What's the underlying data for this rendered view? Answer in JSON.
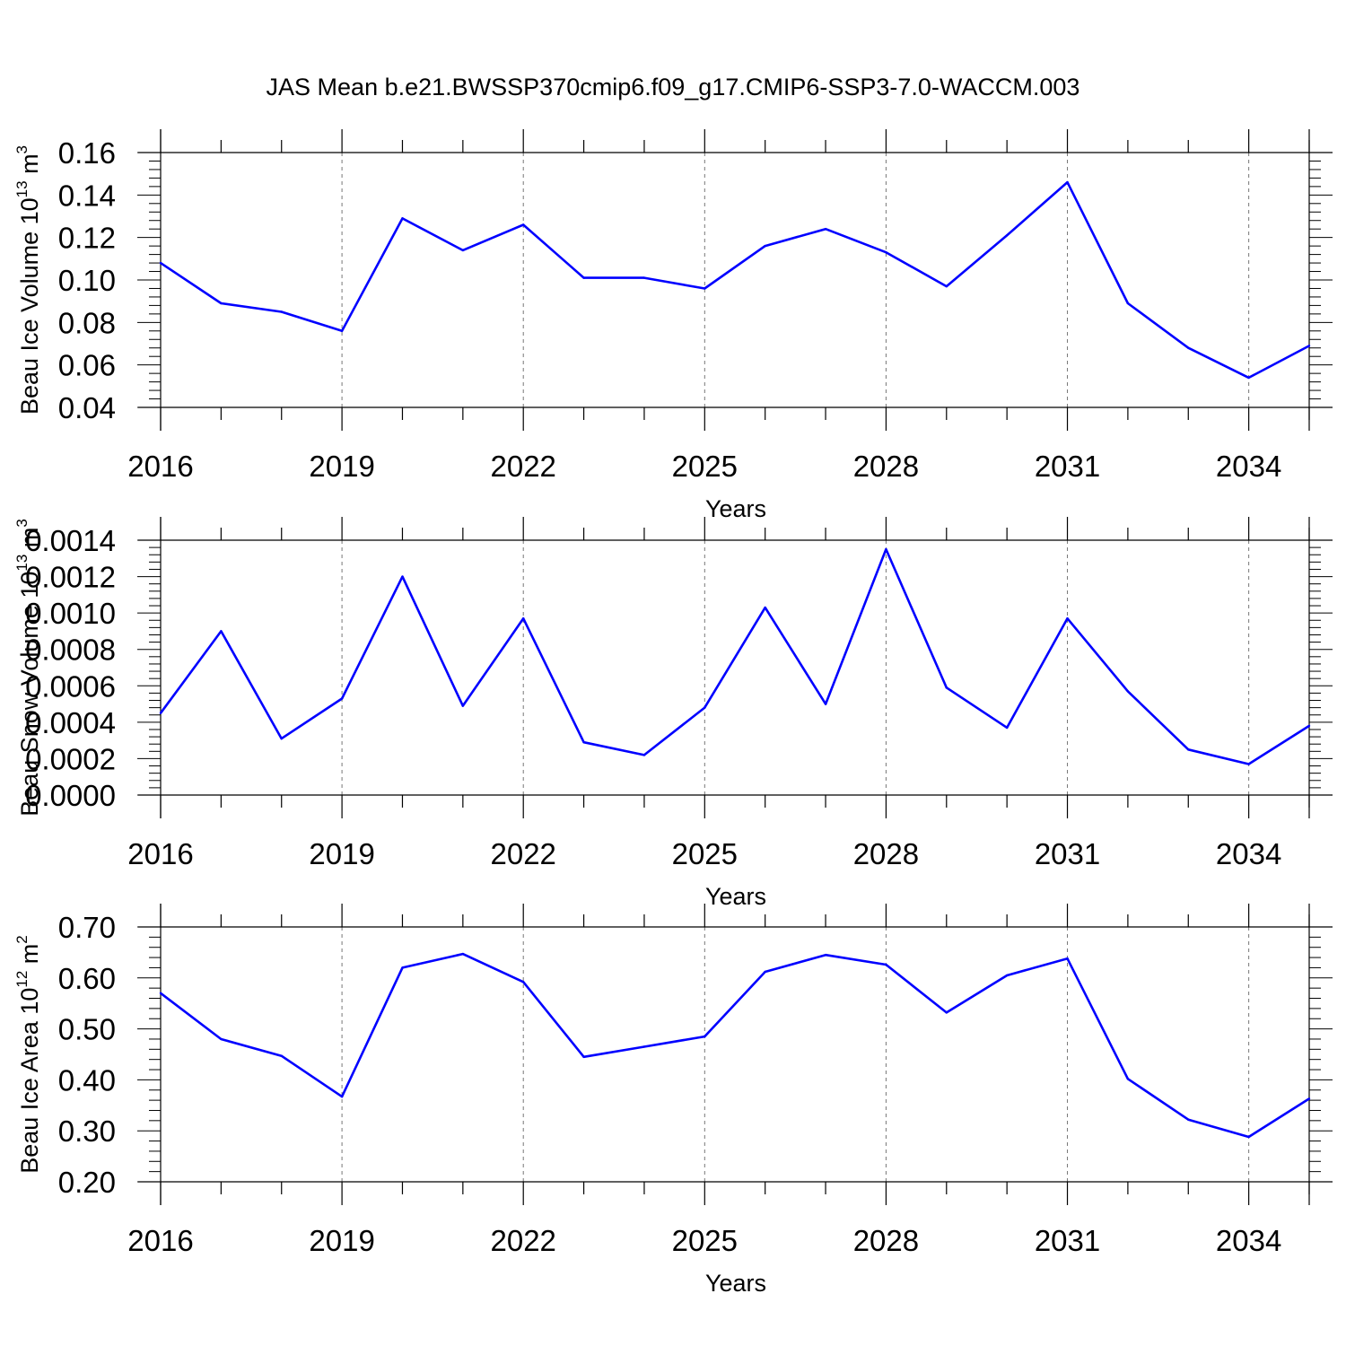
{
  "title": "JAS Mean b.e21.BWSSP370cmip6.f09_g17.CMIP6-SSP3-7.0-WACCM.003",
  "line_color": "#0000ff",
  "grid_color": "#777777",
  "chart_data": [
    {
      "type": "line",
      "xlabel": "Years",
      "ylabel": {
        "main": "Beau Ice Volume 10",
        "exp": "13",
        "unit": " m",
        "unit_exp": "3"
      },
      "xlim": [
        2016,
        2035
      ],
      "ylim": [
        0.04,
        0.16
      ],
      "xticks": [
        2016,
        2019,
        2022,
        2025,
        2028,
        2031,
        2034
      ],
      "xtick_labels": [
        "2016",
        "2019",
        "2022",
        "2025",
        "2028",
        "2031",
        "2034"
      ],
      "yticks": [
        0.04,
        0.06,
        0.08,
        0.1,
        0.12,
        0.14,
        0.16
      ],
      "ytick_labels": [
        "0.04",
        "0.06",
        "0.08",
        "0.10",
        "0.12",
        "0.14",
        "0.16"
      ],
      "grid": "vertical dashed at major x ticks",
      "x": [
        2016,
        2017,
        2018,
        2019,
        2020,
        2021,
        2022,
        2023,
        2024,
        2025,
        2026,
        2027,
        2028,
        2029,
        2030,
        2031,
        2032,
        2033,
        2034,
        2035
      ],
      "values": [
        0.108,
        0.089,
        0.085,
        0.076,
        0.129,
        0.114,
        0.126,
        0.101,
        0.101,
        0.096,
        0.116,
        0.124,
        0.113,
        0.097,
        0.121,
        0.146,
        0.089,
        0.068,
        0.054,
        0.069
      ]
    },
    {
      "type": "line",
      "xlabel": "Years",
      "ylabel": {
        "main": "Beau Snow Volume 10",
        "exp": "13",
        "unit": " m",
        "unit_exp": "3"
      },
      "xlim": [
        2016,
        2035
      ],
      "ylim": [
        0.0,
        0.0014
      ],
      "xticks": [
        2016,
        2019,
        2022,
        2025,
        2028,
        2031,
        2034
      ],
      "xtick_labels": [
        "2016",
        "2019",
        "2022",
        "2025",
        "2028",
        "2031",
        "2034"
      ],
      "yticks": [
        0.0,
        0.0002,
        0.0004,
        0.0006,
        0.0008,
        0.001,
        0.0012,
        0.0014
      ],
      "ytick_labels": [
        "0.0000",
        "0.0002",
        "0.0004",
        "0.0006",
        "0.0008",
        "0.0010",
        "0.0012",
        "0.0014"
      ],
      "grid": "vertical dashed at major x ticks",
      "x": [
        2016,
        2017,
        2018,
        2019,
        2020,
        2021,
        2022,
        2023,
        2024,
        2025,
        2026,
        2027,
        2028,
        2029,
        2030,
        2031,
        2032,
        2033,
        2034,
        2035
      ],
      "values": [
        0.00045,
        0.0009,
        0.00031,
        0.00053,
        0.0012,
        0.00049,
        0.00097,
        0.00029,
        0.00022,
        0.00048,
        0.00103,
        0.0005,
        0.00135,
        0.00059,
        0.00037,
        0.00097,
        0.00057,
        0.00025,
        0.00017,
        0.00038
      ]
    },
    {
      "type": "line",
      "xlabel": "Years",
      "ylabel": {
        "main": "Beau Ice Area 10",
        "exp": "12",
        "unit": " m",
        "unit_exp": "2"
      },
      "xlim": [
        2016,
        2035
      ],
      "ylim": [
        0.2,
        0.7
      ],
      "xticks": [
        2016,
        2019,
        2022,
        2025,
        2028,
        2031,
        2034
      ],
      "xtick_labels": [
        "2016",
        "2019",
        "2022",
        "2025",
        "2028",
        "2031",
        "2034"
      ],
      "yticks": [
        0.2,
        0.3,
        0.4,
        0.5,
        0.6,
        0.7
      ],
      "ytick_labels": [
        "0.20",
        "0.30",
        "0.40",
        "0.50",
        "0.60",
        "0.70"
      ],
      "grid": "vertical dashed at major x ticks",
      "x": [
        2016,
        2017,
        2018,
        2019,
        2020,
        2021,
        2022,
        2023,
        2024,
        2025,
        2026,
        2027,
        2028,
        2029,
        2030,
        2031,
        2032,
        2033,
        2034,
        2035
      ],
      "values": [
        0.57,
        0.48,
        0.447,
        0.367,
        0.62,
        0.647,
        0.592,
        0.445,
        0.465,
        0.485,
        0.612,
        0.645,
        0.626,
        0.532,
        0.605,
        0.638,
        0.402,
        0.322,
        0.288,
        0.363
      ]
    }
  ]
}
